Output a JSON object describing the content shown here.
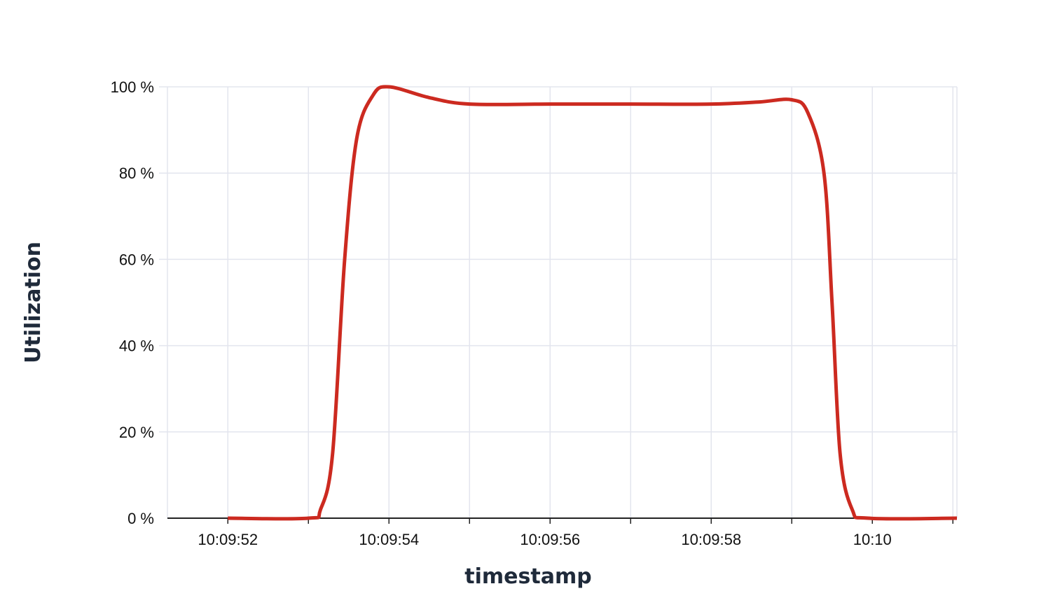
{
  "chart_data": {
    "type": "line",
    "title": "",
    "xlabel": "timestamp",
    "ylabel": "Utilization",
    "x_ticks": [
      "10:09:52",
      "10:09:54",
      "10:09:56",
      "10:09:58",
      "10:10"
    ],
    "y_ticks": [
      "0 %",
      "20 %",
      "40 %",
      "60 %",
      "80 %",
      "100 %"
    ],
    "xlim": [
      "10:09:51.25",
      "10:10:01.05"
    ],
    "ylim": [
      0,
      100
    ],
    "grid": true,
    "legend": "none",
    "series": [
      {
        "color": "#cc2a20",
        "points": [
          {
            "x": "10:09:52.0",
            "y": 0
          },
          {
            "x": "10:09:53.0",
            "y": 0
          },
          {
            "x": "10:09:53.15",
            "y": 2
          },
          {
            "x": "10:09:53.3",
            "y": 15
          },
          {
            "x": "10:09:53.45",
            "y": 60
          },
          {
            "x": "10:09:53.6",
            "y": 88
          },
          {
            "x": "10:09:53.8",
            "y": 98
          },
          {
            "x": "10:09:54.0",
            "y": 100
          },
          {
            "x": "10:09:54.5",
            "y": 97.5
          },
          {
            "x": "10:09:55.0",
            "y": 96
          },
          {
            "x": "10:09:56.0",
            "y": 96
          },
          {
            "x": "10:09:57.0",
            "y": 96
          },
          {
            "x": "10:09:58.0",
            "y": 96
          },
          {
            "x": "10:09:58.6",
            "y": 96.5
          },
          {
            "x": "10:09:59.0",
            "y": 97
          },
          {
            "x": "10:09:59.2",
            "y": 94
          },
          {
            "x": "10:09:59.4",
            "y": 80
          },
          {
            "x": "10:09:59.5",
            "y": 50
          },
          {
            "x": "10:09:59.6",
            "y": 15
          },
          {
            "x": "10:09:59.75",
            "y": 2
          },
          {
            "x": "10:09:59.95",
            "y": 0
          },
          {
            "x": "10:10:01.05",
            "y": 0
          }
        ]
      }
    ]
  }
}
